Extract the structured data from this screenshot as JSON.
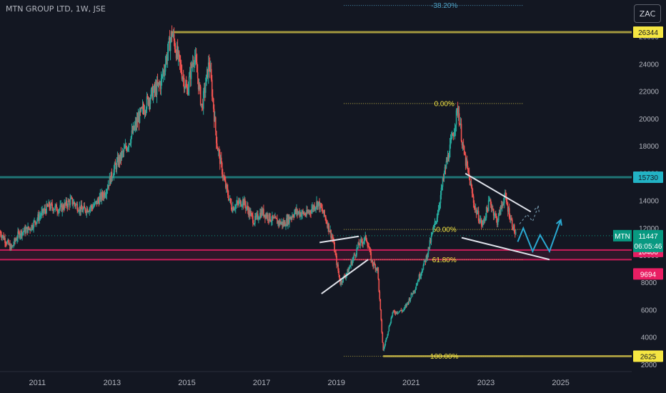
{
  "header": {
    "title": "MTN GROUP LTD, 1W, JSE",
    "currency_button": "ZAC"
  },
  "price_tag": {
    "symbol": "MTN",
    "price": "11447",
    "countdown": "06:05:46",
    "color": "#089981"
  },
  "colors": {
    "background": "#131722",
    "up_candle": "#26a69a",
    "down_candle": "#ef5350",
    "gold_level": "#b5a642",
    "teal_level": "#21807f",
    "red_zone": "#e91e63",
    "trendline": "#e0e3eb",
    "projection": "#2aa9d1",
    "fib_text": "#f5e642"
  },
  "chart_data": {
    "type": "candlestick",
    "title": "MTN GROUP LTD, 1W, JSE",
    "xlabel": "",
    "ylabel": "",
    "x_ticks": [
      "2011",
      "2013",
      "2015",
      "2017",
      "2019",
      "2021",
      "2023",
      "2025"
    ],
    "y_ticks": [
      "2000",
      "4000",
      "6000",
      "8000",
      "10000",
      "12000",
      "14000",
      "16000",
      "18000",
      "20000",
      "22000",
      "24000",
      "26000"
    ],
    "ylim": [
      1500,
      28700
    ],
    "xlim": [
      2010.0,
      2026.9
    ],
    "grid": false,
    "price_path": [
      [
        2010.0,
        11700
      ],
      [
        2010.3,
        10500
      ],
      [
        2010.5,
        11600
      ],
      [
        2010.8,
        12000
      ],
      [
        2011.0,
        12700
      ],
      [
        2011.3,
        13600
      ],
      [
        2011.6,
        13400
      ],
      [
        2011.9,
        14000
      ],
      [
        2012.2,
        13300
      ],
      [
        2012.5,
        13600
      ],
      [
        2012.8,
        14600
      ],
      [
        2013.1,
        16600
      ],
      [
        2013.4,
        18000
      ],
      [
        2013.7,
        20000
      ],
      [
        2014.0,
        21600
      ],
      [
        2014.3,
        22600
      ],
      [
        2014.6,
        26300
      ],
      [
        2014.75,
        24600
      ],
      [
        2015.0,
        22000
      ],
      [
        2015.2,
        24800
      ],
      [
        2015.4,
        20800
      ],
      [
        2015.6,
        24200
      ],
      [
        2015.8,
        18200
      ],
      [
        2016.0,
        15400
      ],
      [
        2016.2,
        13500
      ],
      [
        2016.5,
        14000
      ],
      [
        2016.8,
        12500
      ],
      [
        2017.0,
        13200
      ],
      [
        2017.3,
        12600
      ],
      [
        2017.6,
        12300
      ],
      [
        2017.9,
        13200
      ],
      [
        2018.2,
        13000
      ],
      [
        2018.5,
        13900
      ],
      [
        2018.7,
        12800
      ],
      [
        2018.9,
        11200
      ],
      [
        2019.1,
        8000
      ],
      [
        2019.3,
        8800
      ],
      [
        2019.6,
        10800
      ],
      [
        2019.8,
        11300
      ],
      [
        2019.95,
        9500
      ],
      [
        2020.1,
        9000
      ],
      [
        2020.25,
        3000
      ],
      [
        2020.5,
        5800
      ],
      [
        2020.8,
        6000
      ],
      [
        2021.1,
        7600
      ],
      [
        2021.4,
        9800
      ],
      [
        2021.7,
        13000
      ],
      [
        2021.9,
        16200
      ],
      [
        2022.1,
        18600
      ],
      [
        2022.25,
        20800
      ],
      [
        2022.4,
        17600
      ],
      [
        2022.55,
        15700
      ],
      [
        2022.7,
        13500
      ],
      [
        2022.9,
        12200
      ],
      [
        2023.1,
        14000
      ],
      [
        2023.3,
        12500
      ],
      [
        2023.5,
        14400
      ],
      [
        2023.65,
        12800
      ],
      [
        2023.8,
        11447
      ]
    ],
    "horizontal_levels": [
      {
        "label": "26344",
        "price": 26344,
        "style": "gold"
      },
      {
        "label": "15730",
        "price": 15730,
        "style": "teal"
      },
      {
        "label": "10400",
        "price": 10400,
        "style": "red"
      },
      {
        "label": "9694",
        "price": 9694,
        "style": "red"
      },
      {
        "label": "2625",
        "price": 2625,
        "style": "gold"
      }
    ],
    "fib_levels": [
      {
        "label": "-38.20%",
        "price": 28300
      },
      {
        "label": "0.00%",
        "price": 21120
      },
      {
        "label": "50.00%",
        "price": 11900
      },
      {
        "label": "61.80%",
        "price": 9694
      },
      {
        "label": "100.00%",
        "price": 2625
      }
    ],
    "fib_x_range": [
      2019.2,
      2024.0
    ],
    "trendlines": [
      {
        "points": [
          [
            2018.55,
            10950
          ],
          [
            2019.6,
            11400
          ]
        ]
      },
      {
        "points": [
          [
            2018.6,
            7200
          ],
          [
            2019.85,
            9700
          ]
        ]
      },
      {
        "points": [
          [
            2022.45,
            16000
          ],
          [
            2024.2,
            13200
          ]
        ]
      },
      {
        "points": [
          [
            2022.35,
            11300
          ],
          [
            2024.7,
            9700
          ]
        ]
      }
    ],
    "projections": [
      {
        "style": "solid",
        "points": [
          [
            2023.85,
            11000
          ],
          [
            2024.0,
            12000
          ],
          [
            2024.25,
            10300
          ],
          [
            2024.45,
            11500
          ],
          [
            2024.7,
            10300
          ],
          [
            2025.0,
            12600
          ]
        ]
      },
      {
        "style": "dashed",
        "points": [
          [
            2023.9,
            12300
          ],
          [
            2024.1,
            13000
          ],
          [
            2024.25,
            12500
          ],
          [
            2024.4,
            13600
          ]
        ]
      }
    ],
    "last_price": 11447
  }
}
